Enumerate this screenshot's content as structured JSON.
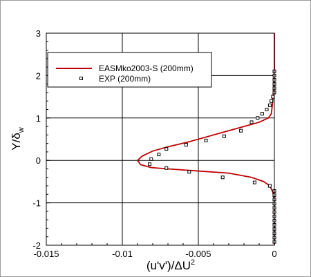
{
  "chart_data": {
    "type": "line",
    "title": "",
    "xlabel": "(u'v')/ΔU",
    "xlabel_superscript": "2",
    "ylabel": "Y/δ",
    "ylabel_subscript": "w",
    "xlim": [
      -0.015,
      0
    ],
    "ylim": [
      -2,
      3
    ],
    "grid": true,
    "legend_position": "upper-left inside plot",
    "x_ticks": [
      {
        "value": -0.015,
        "label": "-0.015"
      },
      {
        "value": -0.01,
        "label": "-0.01"
      },
      {
        "value": -0.005,
        "label": "-0.005"
      },
      {
        "value": 0,
        "label": "0"
      }
    ],
    "y_ticks": [
      {
        "value": -2,
        "label": "-2"
      },
      {
        "value": -1,
        "label": "-1"
      },
      {
        "value": 0,
        "label": "0"
      },
      {
        "value": 1,
        "label": "1"
      },
      {
        "value": 2,
        "label": "2"
      },
      {
        "value": 3,
        "label": "3"
      }
    ],
    "series": [
      {
        "name": "EASMko2003-S (200mm)",
        "kind": "line",
        "color": "#c00000",
        "points": [
          {
            "x": 0,
            "y": 3.0
          },
          {
            "x": 0,
            "y": 2.2
          },
          {
            "x": -0.0001,
            "y": 1.4
          },
          {
            "x": -0.0002,
            "y": 1.1
          },
          {
            "x": -0.0004,
            "y": 1.0
          },
          {
            "x": -0.001,
            "y": 0.9
          },
          {
            "x": -0.002,
            "y": 0.8
          },
          {
            "x": -0.0035,
            "y": 0.65
          },
          {
            "x": -0.0055,
            "y": 0.45
          },
          {
            "x": -0.007,
            "y": 0.32
          },
          {
            "x": -0.008,
            "y": 0.22
          },
          {
            "x": -0.0087,
            "y": 0.1
          },
          {
            "x": -0.009,
            "y": 0.0
          },
          {
            "x": -0.0088,
            "y": -0.1
          },
          {
            "x": -0.0081,
            "y": -0.17
          },
          {
            "x": -0.007,
            "y": -0.2
          },
          {
            "x": -0.005,
            "y": -0.25
          },
          {
            "x": -0.003,
            "y": -0.3
          },
          {
            "x": -0.0015,
            "y": -0.4
          },
          {
            "x": -0.0007,
            "y": -0.5
          },
          {
            "x": -0.0003,
            "y": -0.6
          },
          {
            "x": -0.0001,
            "y": -0.75
          },
          {
            "x": 0,
            "y": -1.0
          },
          {
            "x": 0,
            "y": -2.0
          }
        ]
      },
      {
        "name": "EXP (200mm)",
        "kind": "markers",
        "marker": "open-square",
        "color": "#000000",
        "points": [
          {
            "x": 0,
            "y": 2.1
          },
          {
            "x": 0,
            "y": 2.0
          },
          {
            "x": 0,
            "y": 1.9
          },
          {
            "x": 0,
            "y": 1.8
          },
          {
            "x": 0,
            "y": 1.7
          },
          {
            "x": 0,
            "y": 1.6
          },
          {
            "x": -0.0001,
            "y": 1.5
          },
          {
            "x": -0.0002,
            "y": 1.4
          },
          {
            "x": -0.0003,
            "y": 1.3
          },
          {
            "x": -0.0005,
            "y": 1.2
          },
          {
            "x": -0.0008,
            "y": 1.1
          },
          {
            "x": -0.0011,
            "y": 1.0
          },
          {
            "x": -0.0015,
            "y": 0.9
          },
          {
            "x": -0.0022,
            "y": 0.7
          },
          {
            "x": -0.0033,
            "y": 0.57
          },
          {
            "x": -0.0045,
            "y": 0.47
          },
          {
            "x": -0.0058,
            "y": 0.37
          },
          {
            "x": -0.0071,
            "y": 0.27
          },
          {
            "x": -0.0076,
            "y": 0.14
          },
          {
            "x": -0.0081,
            "y": 0.03
          },
          {
            "x": -0.0082,
            "y": -0.09
          },
          {
            "x": -0.0071,
            "y": -0.18
          },
          {
            "x": -0.0056,
            "y": -0.27
          },
          {
            "x": -0.0034,
            "y": -0.4
          },
          {
            "x": -0.0013,
            "y": -0.52
          },
          {
            "x": -0.0003,
            "y": -0.6
          },
          {
            "x": 0,
            "y": -0.72
          },
          {
            "x": 0,
            "y": -0.82
          },
          {
            "x": 0,
            "y": -0.92
          },
          {
            "x": 0,
            "y": -1.02
          },
          {
            "x": 0,
            "y": -1.12
          },
          {
            "x": 0,
            "y": -1.22
          },
          {
            "x": 0,
            "y": -1.32
          },
          {
            "x": 0,
            "y": -1.42
          },
          {
            "x": 0,
            "y": -1.52
          },
          {
            "x": 0,
            "y": -1.62
          },
          {
            "x": 0,
            "y": -1.72
          },
          {
            "x": 0,
            "y": -1.82
          },
          {
            "x": 0,
            "y": -1.92
          }
        ]
      }
    ]
  }
}
